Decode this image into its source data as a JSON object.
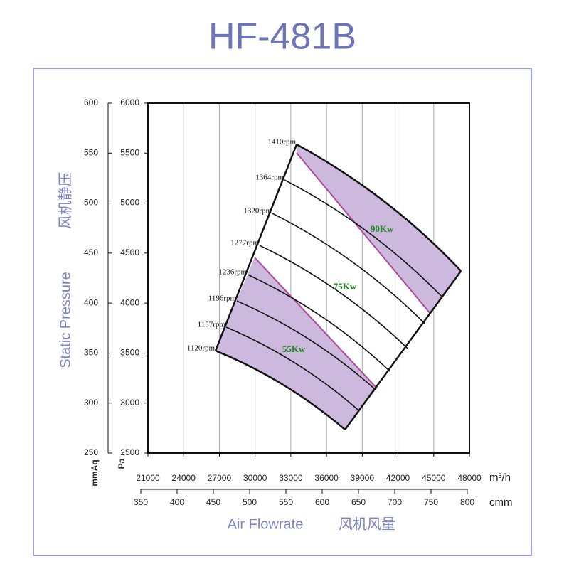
{
  "chart_data": {
    "type": "fan-curve",
    "title": "HF-481B",
    "y_label": "Static Pressure",
    "y_label_cn": "风机静压",
    "x_label": "Air Flowrate",
    "x_label_cn": "风机风量",
    "y_unit": "Pa",
    "y2_unit": "mmAq",
    "x_unit": "m³/h",
    "x2_unit": "cmm",
    "ylim": [
      2500,
      6000
    ],
    "yticks": [
      2500,
      3000,
      3500,
      4000,
      4500,
      5000,
      5500,
      6000
    ],
    "y2lim": [
      250,
      600
    ],
    "y2ticks": [
      250,
      300,
      350,
      400,
      450,
      500,
      550,
      600
    ],
    "xlim": [
      21000,
      48000
    ],
    "xticks": [
      21000,
      24000,
      27000,
      30000,
      33000,
      36000,
      39000,
      42000,
      45000,
      48000
    ],
    "x2lim": [
      350,
      800
    ],
    "x2ticks": [
      350,
      400,
      450,
      500,
      550,
      600,
      650,
      700,
      750,
      800
    ],
    "grid": "x",
    "curve_color": "#111111",
    "zone_color": "#cdb9de",
    "power_line_color": "#b0489c",
    "series": [
      {
        "name": "1410rpm",
        "x": [
          33490,
          47290
        ],
        "values": [
          5587,
          4321
        ]
      },
      {
        "name": "1364rpm",
        "x": [
          32470,
          45740
        ],
        "values": [
          5232,
          4058
        ]
      },
      {
        "name": "1320rpm",
        "x": [
          31460,
          44250
        ],
        "values": [
          4897,
          3795
        ]
      },
      {
        "name": "1277rpm",
        "x": [
          30380,
          42810
        ],
        "values": [
          4577,
          3546
        ]
      },
      {
        "name": "1236rpm",
        "x": [
          29370,
          41320
        ],
        "values": [
          4286,
          3318
        ]
      },
      {
        "name": "1196rpm",
        "x": [
          28470,
          40120
        ],
        "values": [
          4022,
          3133
        ]
      },
      {
        "name": "1157rpm",
        "x": [
          27570,
          38630
        ],
        "values": [
          3759,
          2934
        ]
      },
      {
        "name": "1120rpm",
        "x": [
          26680,
          37550
        ],
        "values": [
          3524,
          2735
        ]
      }
    ],
    "power_lines": [
      {
        "name": "90Kw",
        "x": [
          33490,
          44720
        ],
        "values": [
          5502,
          3894
        ]
      },
      {
        "name": "55Kw",
        "x": [
          29960,
          40240
        ],
        "values": [
          4456,
          3147
        ]
      }
    ],
    "power_labels": [
      {
        "text": "90Kw",
        "x": 40660,
        "y": 4734
      },
      {
        "text": "75Kw",
        "x": 37550,
        "y": 4158
      },
      {
        "text": "55Kw",
        "x": 33250,
        "y": 3532
      }
    ]
  }
}
